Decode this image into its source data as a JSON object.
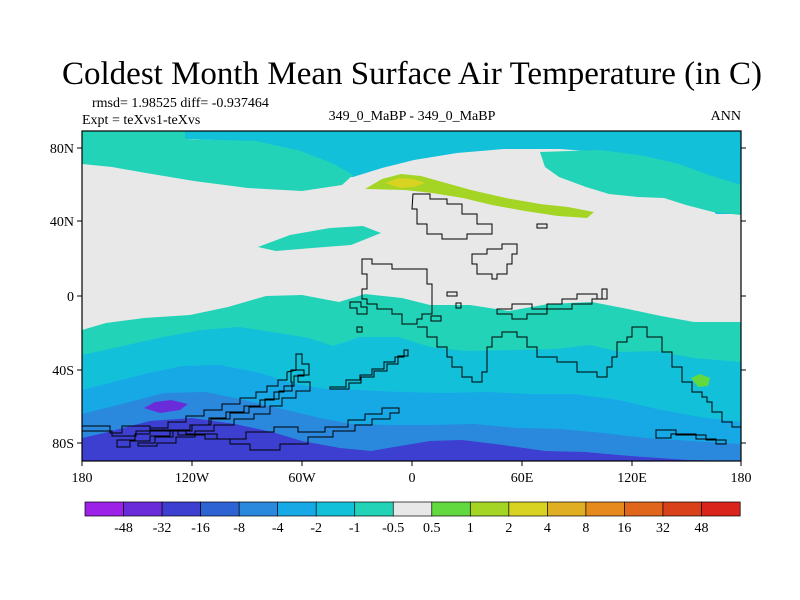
{
  "title": "Coldest Month Mean Surface Air Temperature (in C)",
  "stats": {
    "rmsd_diff": "rmsd= 1.98525 diff= -0.937464",
    "expt": "Expt = teXvs1-teXvs",
    "center_label": "349_0_MaBP - 349_0_MaBP",
    "season": "ANN"
  },
  "axes": {
    "x_ticks": [
      "180",
      "120W",
      "60W",
      "0",
      "60E",
      "120E",
      "180"
    ],
    "y_ticks": [
      "80N",
      "40N",
      "0",
      "40S",
      "80S"
    ]
  },
  "colorbar": {
    "labels": [
      "-48",
      "-32",
      "-16",
      "-8",
      "-4",
      "-2",
      "-1",
      "-0.5",
      "0.5",
      "1",
      "2",
      "4",
      "8",
      "16",
      "32",
      "48"
    ],
    "colors": [
      "#9b22e6",
      "#6a2cd9",
      "#3c3fd0",
      "#2e63d4",
      "#2a88dd",
      "#17a8e6",
      "#12c0da",
      "#22d3b8",
      "#e8e8e8",
      "#61d93f",
      "#a5d524",
      "#d8d320",
      "#e0ae22",
      "#e68a1e",
      "#e0661c",
      "#d84119",
      "#d8241a"
    ]
  },
  "map_colors": {
    "ocean_dark": "#2a88dd",
    "ocean_mid": "#17a8e6",
    "ocean_light": "#12c0da",
    "ocean_pale": "#22d3b8",
    "land": "#e8e8e8",
    "warm": "#a5d524",
    "warm_dark": "#d8d320",
    "green": "#61d93f",
    "deep": "#3c3fd0",
    "deeper": "#6a2cd9"
  }
}
